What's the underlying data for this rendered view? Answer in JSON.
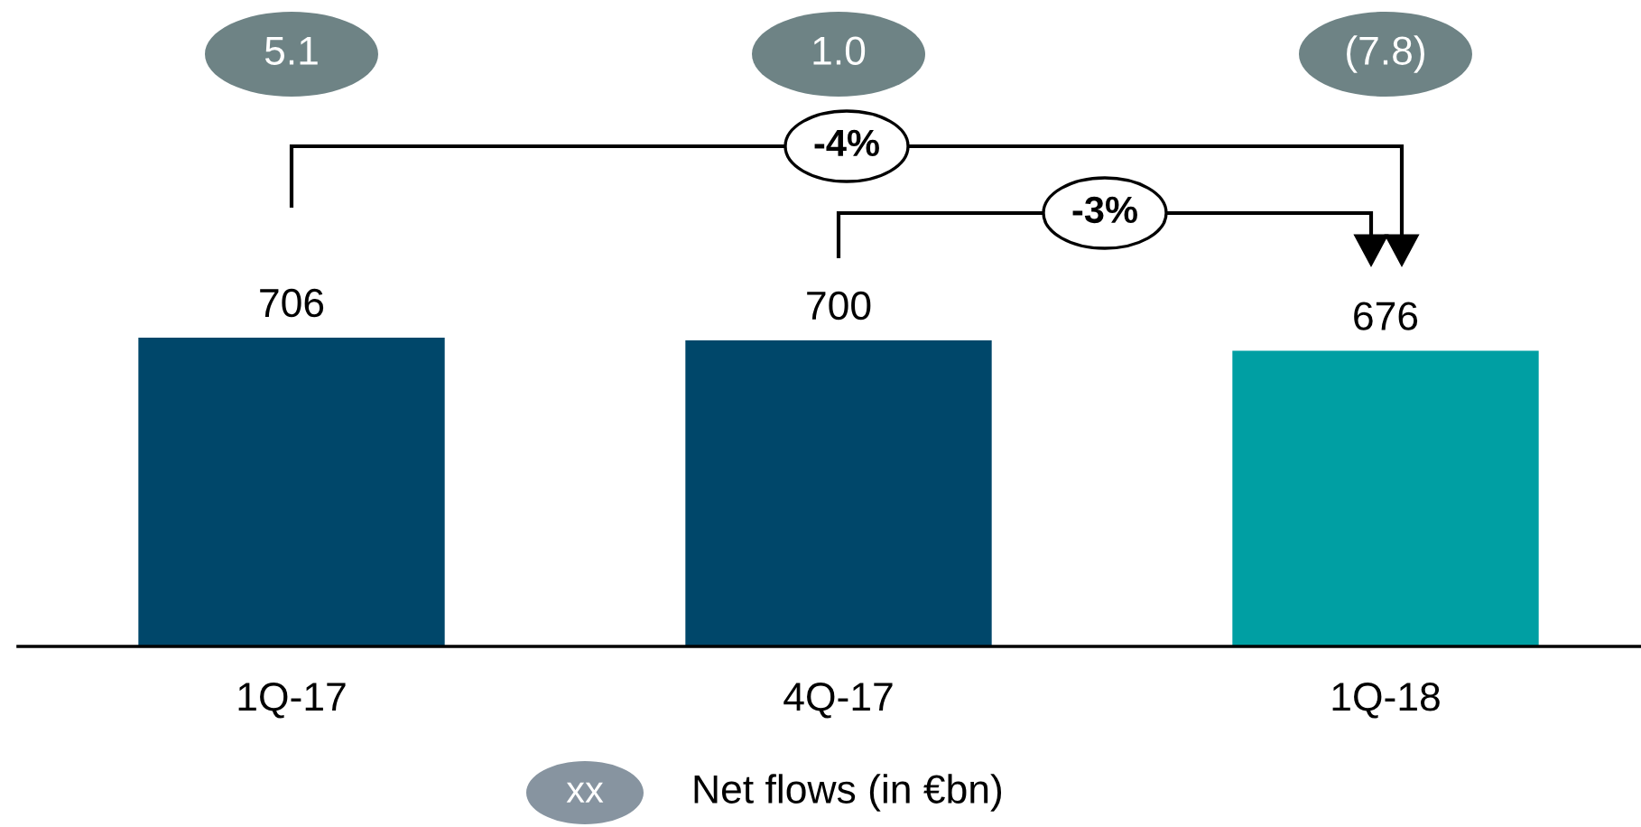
{
  "chart_data": {
    "type": "bar",
    "categories": [
      "1Q-17",
      "4Q-17",
      "1Q-18"
    ],
    "values": [
      706,
      700,
      676
    ],
    "colors": [
      "#00476a",
      "#00476a",
      "#009fa3"
    ],
    "data_labels": true,
    "tick_labels": "x",
    "annotations": [
      "5.1",
      "1.0",
      "(7.8)",
      "-4%",
      "-3%",
      "xx",
      "Net flows (in €bn)"
    ]
  }
}
